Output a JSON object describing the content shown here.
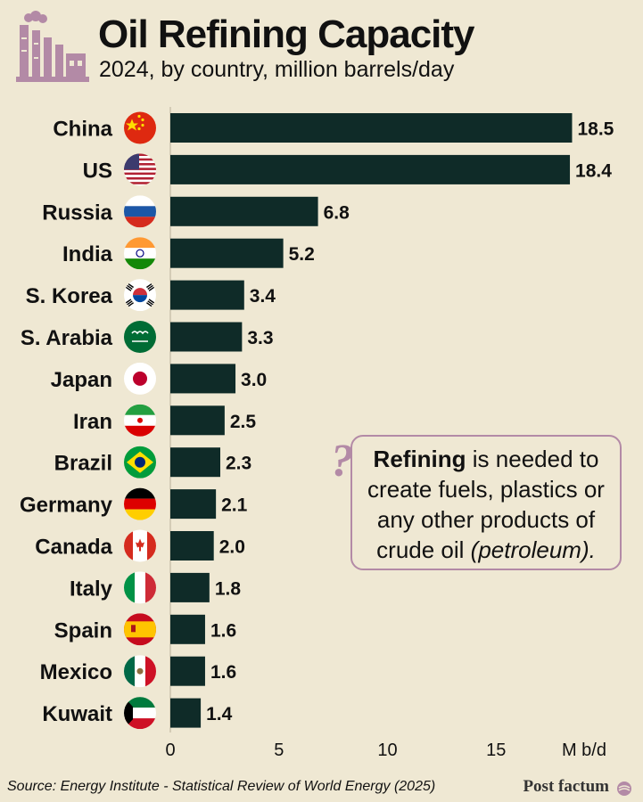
{
  "header": {
    "title": "Oil Refining Capacity",
    "subtitle": "2024, by country, million barrels/day"
  },
  "chart_data": {
    "type": "bar",
    "orientation": "horizontal",
    "title": "Oil Refining Capacity",
    "subtitle": "2024, by country, million barrels/day",
    "categories": [
      "China",
      "US",
      "Russia",
      "India",
      "S. Korea",
      "S. Arabia",
      "Japan",
      "Iran",
      "Brazil",
      "Germany",
      "Canada",
      "Italy",
      "Spain",
      "Mexico",
      "Kuwait"
    ],
    "values": [
      18.5,
      18.4,
      6.8,
      5.2,
      3.4,
      3.3,
      3.0,
      2.5,
      2.3,
      2.1,
      2.0,
      1.8,
      1.6,
      1.6,
      1.4
    ],
    "value_labels": [
      "18.5",
      "18.4",
      "6.8",
      "5.2",
      "3.4",
      "3.3",
      "3.0",
      "2.5",
      "2.3",
      "2.1",
      "2.0",
      "1.8",
      "1.6",
      "1.6",
      "1.4"
    ],
    "x_ticks": [
      "0",
      "5",
      "10",
      "15"
    ],
    "x_tick_values": [
      0,
      5,
      10,
      15
    ],
    "xlabel": "M b/d",
    "xlim": [
      0,
      19
    ],
    "bar_color": "#0f2b28",
    "grid": false
  },
  "callout": {
    "bold": "Refining",
    "line1_rest": " is needed to",
    "line2": "create fuels, plastics or",
    "line3": "any other products of",
    "line4_start": "crude oil ",
    "line4_italic": "(petroleum).",
    "mark": "?"
  },
  "footer": {
    "source": "Source: Energy Institute - Statistical Review of World Energy (2025)",
    "brand": "Post factum"
  },
  "colors": {
    "background": "#efe8d3",
    "bar": "#0f2b28",
    "accent": "#b38aa6"
  },
  "icons": {
    "header": "factory-icon",
    "flags": [
      "china-flag-icon",
      "us-flag-icon",
      "russia-flag-icon",
      "india-flag-icon",
      "south-korea-flag-icon",
      "saudi-arabia-flag-icon",
      "japan-flag-icon",
      "iran-flag-icon",
      "brazil-flag-icon",
      "germany-flag-icon",
      "canada-flag-icon",
      "italy-flag-icon",
      "spain-flag-icon",
      "mexico-flag-icon",
      "kuwait-flag-icon"
    ]
  }
}
